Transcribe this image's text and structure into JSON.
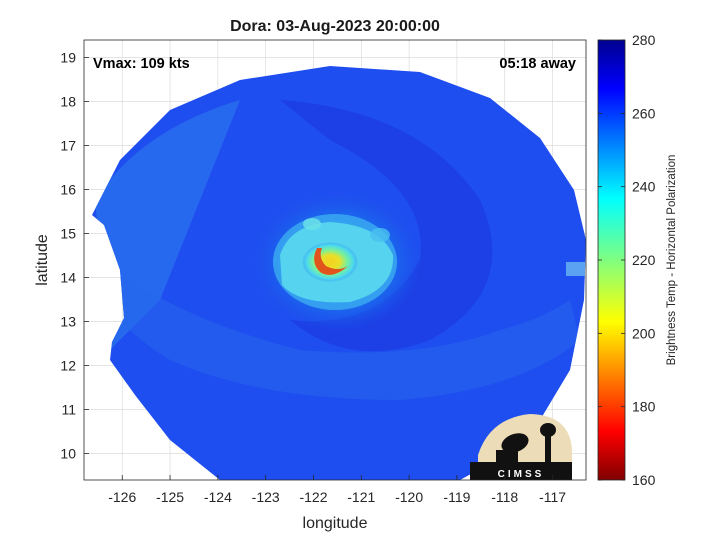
{
  "chart_data": {
    "type": "heatmap",
    "title": "Dora: 03-Aug-2023 20:00:00",
    "xlabel": "longitude",
    "ylabel": "latitude",
    "xlim": [
      -126.8,
      -116.3
    ],
    "ylim": [
      9.4,
      19.4
    ],
    "xticks": [
      -126,
      -125,
      -124,
      -123,
      -122,
      -121,
      -120,
      -119,
      -118,
      -117
    ],
    "yticks": [
      10,
      11,
      12,
      13,
      14,
      15,
      16,
      17,
      18,
      19
    ],
    "grid": true,
    "annotations": {
      "top_left": "Vmax: 109 kts",
      "top_right": "05:18 away"
    },
    "colorbar": {
      "label": "Brightness Temp - Horizontal Polarization",
      "range": [
        160,
        280
      ],
      "ticks": [
        160,
        180,
        200,
        220,
        240,
        260,
        280
      ],
      "colormap": "jet"
    },
    "storm_center": {
      "lon": -121.8,
      "lat": 14.4,
      "min_brightness_temp": 195
    },
    "background_brightness_temp": 262,
    "logo_text": "CIMSS"
  }
}
